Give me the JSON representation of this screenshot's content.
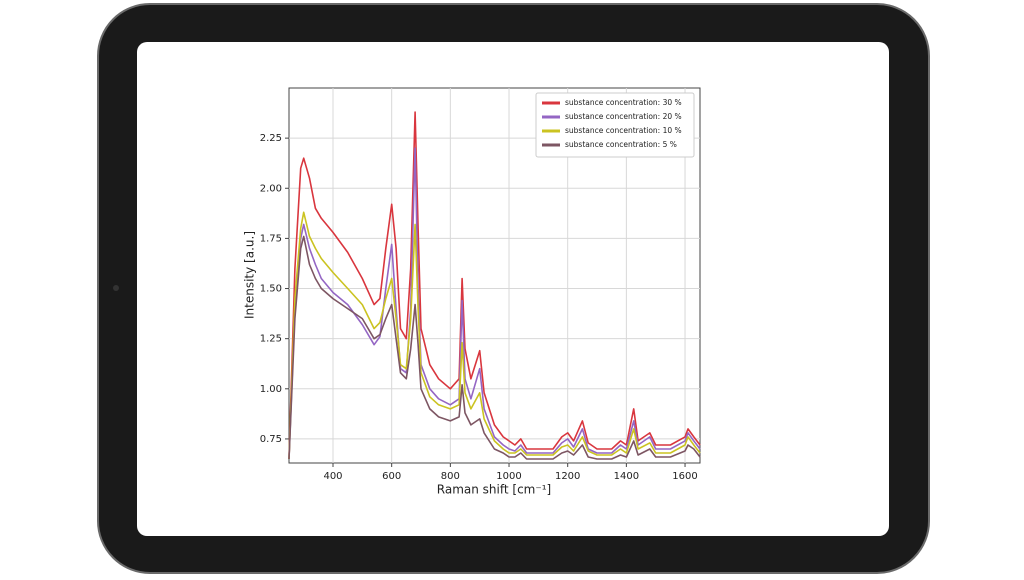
{
  "chart_data": {
    "type": "line",
    "xlabel": "Raman shift [cm⁻¹]",
    "ylabel": "Intensity [a.u.]",
    "x": [
      250,
      270,
      290,
      300,
      320,
      340,
      360,
      400,
      450,
      500,
      540,
      560,
      580,
      600,
      615,
      630,
      650,
      665,
      680,
      690,
      700,
      730,
      760,
      800,
      830,
      840,
      850,
      870,
      900,
      915,
      950,
      980,
      1000,
      1020,
      1040,
      1060,
      1100,
      1150,
      1180,
      1200,
      1220,
      1250,
      1270,
      1300,
      1350,
      1380,
      1400,
      1425,
      1440,
      1480,
      1500,
      1550,
      1600,
      1610,
      1630,
      1651
    ],
    "series": [
      {
        "name": "substance concentration: 30 %",
        "color": "#d9363e",
        "values": [
          0.65,
          1.6,
          2.1,
          2.15,
          2.05,
          1.9,
          1.85,
          1.78,
          1.68,
          1.55,
          1.42,
          1.45,
          1.7,
          1.92,
          1.7,
          1.3,
          1.25,
          1.6,
          2.38,
          1.8,
          1.3,
          1.12,
          1.05,
          1.0,
          1.05,
          1.55,
          1.2,
          1.05,
          1.19,
          0.98,
          0.82,
          0.76,
          0.74,
          0.72,
          0.75,
          0.7,
          0.7,
          0.7,
          0.76,
          0.78,
          0.74,
          0.84,
          0.73,
          0.7,
          0.7,
          0.74,
          0.72,
          0.9,
          0.74,
          0.78,
          0.72,
          0.72,
          0.76,
          0.8,
          0.76,
          0.72
        ]
      },
      {
        "name": "substance concentration: 20 %",
        "color": "#9466c4",
        "values": [
          0.65,
          1.4,
          1.75,
          1.82,
          1.7,
          1.62,
          1.55,
          1.48,
          1.42,
          1.32,
          1.22,
          1.26,
          1.5,
          1.72,
          1.4,
          1.1,
          1.08,
          1.4,
          2.2,
          1.5,
          1.12,
          1.0,
          0.95,
          0.92,
          0.95,
          1.44,
          1.05,
          0.95,
          1.1,
          0.9,
          0.76,
          0.72,
          0.7,
          0.69,
          0.72,
          0.68,
          0.68,
          0.68,
          0.73,
          0.75,
          0.71,
          0.8,
          0.7,
          0.68,
          0.68,
          0.72,
          0.7,
          0.84,
          0.72,
          0.76,
          0.7,
          0.7,
          0.74,
          0.78,
          0.74,
          0.7
        ]
      },
      {
        "name": "substance concentration: 10 %",
        "color": "#cbc321",
        "values": [
          0.65,
          1.45,
          1.8,
          1.88,
          1.76,
          1.7,
          1.65,
          1.58,
          1.5,
          1.42,
          1.3,
          1.33,
          1.45,
          1.55,
          1.35,
          1.12,
          1.1,
          1.35,
          1.82,
          1.4,
          1.08,
          0.96,
          0.92,
          0.9,
          0.92,
          1.23,
          0.98,
          0.9,
          0.98,
          0.85,
          0.74,
          0.7,
          0.68,
          0.68,
          0.7,
          0.67,
          0.67,
          0.67,
          0.71,
          0.72,
          0.69,
          0.76,
          0.69,
          0.67,
          0.67,
          0.7,
          0.68,
          0.8,
          0.7,
          0.73,
          0.68,
          0.68,
          0.72,
          0.76,
          0.72,
          0.68
        ]
      },
      {
        "name": "substance concentration: 5 %",
        "color": "#7d5663",
        "values": [
          0.65,
          1.35,
          1.7,
          1.76,
          1.62,
          1.55,
          1.5,
          1.45,
          1.4,
          1.35,
          1.25,
          1.27,
          1.35,
          1.42,
          1.25,
          1.08,
          1.05,
          1.2,
          1.42,
          1.22,
          1.0,
          0.9,
          0.86,
          0.84,
          0.86,
          1.02,
          0.88,
          0.82,
          0.85,
          0.78,
          0.7,
          0.68,
          0.66,
          0.66,
          0.68,
          0.65,
          0.65,
          0.65,
          0.68,
          0.69,
          0.67,
          0.72,
          0.66,
          0.65,
          0.65,
          0.67,
          0.66,
          0.74,
          0.67,
          0.7,
          0.66,
          0.66,
          0.69,
          0.72,
          0.7,
          0.66
        ]
      }
    ],
    "xlim": [
      250,
      1651
    ],
    "ylim": [
      0.63,
      2.5
    ],
    "xticks": [
      400,
      600,
      800,
      1000,
      1200,
      1400,
      1600
    ],
    "yticks": [
      0.75,
      {
        "value": 1,
        "label": "1.00"
      },
      1.25,
      {
        "value": 1.5,
        "label": "1.50"
      },
      1.75,
      {
        "value": 2,
        "label": "2.00"
      },
      2.25
    ],
    "grid": true,
    "legend": "upper right"
  }
}
